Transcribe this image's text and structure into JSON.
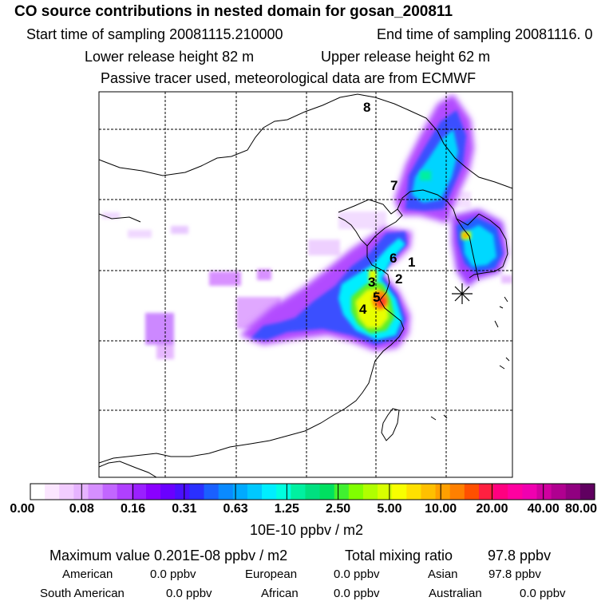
{
  "header": {
    "title": "CO  source contributions in nested domain for gosan_200811",
    "start_label": "Start time of sampling 20081115.210000",
    "end_label": "End time of sampling 20081116.     0",
    "lower_label": "Lower release height   82 m",
    "upper_label": "Upper release height   62 m",
    "note": "Passive tracer used, meteorological data are from ECMWF"
  },
  "map": {
    "region_labels": [
      "1",
      "2",
      "3",
      "4",
      "5",
      "6",
      "7",
      "8"
    ],
    "receptor_marker": "star-marker-icon"
  },
  "colorbar": {
    "tick_labels": [
      "0.00",
      "0.08",
      "0.16",
      "0.31",
      "0.63",
      "1.25",
      "2.50",
      "5.00",
      "10.00",
      "20.00",
      "40.00",
      "80.00"
    ],
    "unit": "10E-10 ppbv / m2",
    "colors": [
      "#ffffff",
      "#fbe6ff",
      "#f2ccff",
      "#e6b3ff",
      "#d68fff",
      "#c266ff",
      "#b040ff",
      "#9a20ff",
      "#8a00ff",
      "#6a00ff",
      "#4a10ff",
      "#2a30ff",
      "#1a60ff",
      "#0a8aff",
      "#00aaff",
      "#00c8ff",
      "#00eeff",
      "#00ffe0",
      "#00f0a0",
      "#00e080",
      "#00e060",
      "#40f030",
      "#80ff00",
      "#b0ff00",
      "#d8ff00",
      "#f8ff00",
      "#ffe000",
      "#ffc000",
      "#ffa000",
      "#ff8000",
      "#ff5000",
      "#ff2040",
      "#ff0080",
      "#ff00a0",
      "#f000b0",
      "#d000a0",
      "#b00090",
      "#900080",
      "#600060"
    ]
  },
  "stats": {
    "max_label": "Maximum value  0.201E-08 ppbv / m2",
    "total_label": "Total mixing ratio",
    "total_value": "97.8 ppbv",
    "american_label": "American",
    "american_value": "0.0 ppbv",
    "european_label": "European",
    "european_value": "0.0 ppbv",
    "asian_label": "Asian",
    "asian_value": "97.8 ppbv",
    "south_american_label": "South American",
    "south_american_value": "0.0 ppbv",
    "african_label": "African",
    "african_value": "0.0 ppbv",
    "australian_label": "Australian",
    "australian_value": "0.0 ppbv"
  }
}
